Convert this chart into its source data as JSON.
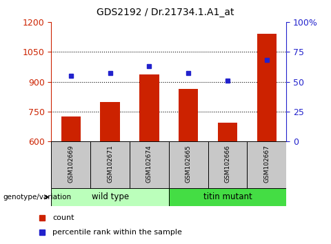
{
  "title": "GDS2192 / Dr.21734.1.A1_at",
  "samples": [
    "GSM102669",
    "GSM102671",
    "GSM102674",
    "GSM102665",
    "GSM102666",
    "GSM102667"
  ],
  "bar_values": [
    725,
    800,
    935,
    865,
    695,
    1140
  ],
  "percentile_values": [
    55,
    57,
    63,
    57,
    51,
    68
  ],
  "ylim_left": [
    600,
    1200
  ],
  "ylim_right": [
    0,
    100
  ],
  "yticks_left": [
    600,
    750,
    900,
    1050,
    1200
  ],
  "yticks_right": [
    0,
    25,
    50,
    75,
    100
  ],
  "bar_color": "#cc2200",
  "dot_color": "#2222cc",
  "bg_color": "#ffffff",
  "sample_box_color": "#c8c8c8",
  "wild_type_color": "#bbffbb",
  "titin_mutant_color": "#44dd44",
  "wild_type_label": "wild type",
  "titin_mutant_label": "titin mutant",
  "genotype_label": "genotype/variation",
  "legend_count_label": "count",
  "legend_percentile_label": "percentile rank within the sample",
  "bar_width": 0.5,
  "n_wild_type": 3,
  "n_titin_mutant": 3
}
